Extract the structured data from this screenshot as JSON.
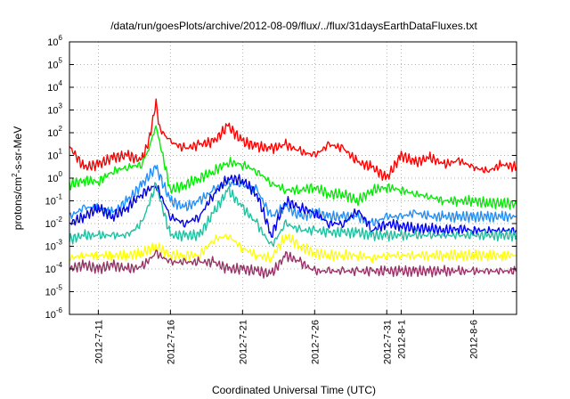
{
  "chart_data": {
    "type": "line",
    "title": "/data/run/goesPlots/archive/2012-08-09/flux/../flux/31daysEarthDataFluxes.txt",
    "xlabel": "Coordinated Universal Time (UTC)",
    "ylabel": {
      "prefix": "protons/cm",
      "sup": "2",
      "suffix": "-s-sr-MeV"
    },
    "yscale": "log",
    "ylim": [
      "1e-6",
      "1e6"
    ],
    "y_ticks": [
      {
        "base": "10",
        "exp": "-6",
        "value": 1e-06
      },
      {
        "base": "10",
        "exp": "-5",
        "value": 1e-05
      },
      {
        "base": "10",
        "exp": "-4",
        "value": 0.0001
      },
      {
        "base": "10",
        "exp": "-3",
        "value": 0.001
      },
      {
        "base": "10",
        "exp": "-2",
        "value": 0.01
      },
      {
        "base": "10",
        "exp": "-1",
        "value": 0.1
      },
      {
        "base": "10",
        "exp": "0",
        "value": 1
      },
      {
        "base": "10",
        "exp": "1",
        "value": 10
      },
      {
        "base": "10",
        "exp": "2",
        "value": 100
      },
      {
        "base": "10",
        "exp": "3",
        "value": 1000
      },
      {
        "base": "10",
        "exp": "4",
        "value": 10000
      },
      {
        "base": "10",
        "exp": "5",
        "value": 100000
      },
      {
        "base": "10",
        "exp": "6",
        "value": 1000000
      }
    ],
    "xlim": [
      "2012-07-09",
      "2012-08-09"
    ],
    "x_ticks": [
      {
        "label": "2012-7-11",
        "date": "2012-07-11"
      },
      {
        "label": "2012-7-16",
        "date": "2012-07-16"
      },
      {
        "label": "2012-7-21",
        "date": "2012-07-21"
      },
      {
        "label": "2012-7-26",
        "date": "2012-07-26"
      },
      {
        "label": "2012-7-31",
        "date": "2012-07-31"
      },
      {
        "label": "2012-8-1",
        "date": "2012-08-01"
      },
      {
        "label": "2012-8-6",
        "date": "2012-08-06"
      }
    ],
    "grid": true,
    "series": [
      {
        "color": "#ff0000",
        "points": [
          [
            "2012-07-09",
            25
          ],
          [
            "2012-07-10",
            3
          ],
          [
            "2012-07-11",
            4
          ],
          [
            "2012-07-12",
            8
          ],
          [
            "2012-07-13",
            10
          ],
          [
            "2012-07-14",
            6
          ],
          [
            "2012-07-14T12:00",
            40
          ],
          [
            "2012-07-15",
            2000
          ],
          [
            "2012-07-15T06:00",
            150
          ],
          [
            "2012-07-16",
            40
          ],
          [
            "2012-07-17",
            20
          ],
          [
            "2012-07-18",
            30
          ],
          [
            "2012-07-19",
            40
          ],
          [
            "2012-07-20",
            200
          ],
          [
            "2012-07-21",
            40
          ],
          [
            "2012-07-22",
            25
          ],
          [
            "2012-07-23",
            20
          ],
          [
            "2012-07-24",
            30
          ],
          [
            "2012-07-25",
            15
          ],
          [
            "2012-07-26",
            10
          ],
          [
            "2012-07-27",
            30
          ],
          [
            "2012-07-28",
            20
          ],
          [
            "2012-07-29",
            5
          ],
          [
            "2012-07-30",
            3
          ],
          [
            "2012-07-31",
            1
          ],
          [
            "2012-08-01",
            10
          ],
          [
            "2012-08-02",
            5
          ],
          [
            "2012-08-03",
            8
          ],
          [
            "2012-08-04",
            4
          ],
          [
            "2012-08-05",
            6
          ],
          [
            "2012-08-06",
            3
          ],
          [
            "2012-08-07",
            2
          ],
          [
            "2012-08-08",
            4
          ],
          [
            "2012-08-09",
            3
          ]
        ]
      },
      {
        "color": "#00ee00",
        "points": [
          [
            "2012-07-09",
            0.5
          ],
          [
            "2012-07-10",
            0.8
          ],
          [
            "2012-07-11",
            0.7
          ],
          [
            "2012-07-12",
            2
          ],
          [
            "2012-07-13",
            3
          ],
          [
            "2012-07-14",
            4
          ],
          [
            "2012-07-14T12:00",
            20
          ],
          [
            "2012-07-15",
            200
          ],
          [
            "2012-07-15T06:00",
            40
          ],
          [
            "2012-07-16",
            0.3
          ],
          [
            "2012-07-17",
            0.5
          ],
          [
            "2012-07-18",
            1
          ],
          [
            "2012-07-19",
            2
          ],
          [
            "2012-07-20",
            5
          ],
          [
            "2012-07-21",
            4
          ],
          [
            "2012-07-22",
            2
          ],
          [
            "2012-07-23",
            0.6
          ],
          [
            "2012-07-24",
            0.3
          ],
          [
            "2012-07-25",
            0.3
          ],
          [
            "2012-07-26",
            0.4
          ],
          [
            "2012-07-27",
            0.2
          ],
          [
            "2012-07-28",
            0.2
          ],
          [
            "2012-07-29",
            0.1
          ],
          [
            "2012-07-30",
            0.3
          ],
          [
            "2012-07-31",
            0.4
          ],
          [
            "2012-08-01",
            0.3
          ],
          [
            "2012-08-02",
            0.2
          ],
          [
            "2012-08-03",
            0.15
          ],
          [
            "2012-08-04",
            0.1
          ],
          [
            "2012-08-05",
            0.1
          ],
          [
            "2012-08-06",
            0.1
          ],
          [
            "2012-08-07",
            0.08
          ],
          [
            "2012-08-08",
            0.08
          ],
          [
            "2012-08-09",
            0.07
          ]
        ]
      },
      {
        "color": "#1e90ff",
        "points": [
          [
            "2012-07-09",
            0.02
          ],
          [
            "2012-07-10",
            0.05
          ],
          [
            "2012-07-11",
            0.05
          ],
          [
            "2012-07-12",
            0.03
          ],
          [
            "2012-07-13",
            0.1
          ],
          [
            "2012-07-14",
            0.5
          ],
          [
            "2012-07-15",
            3
          ],
          [
            "2012-07-16",
            0.1
          ],
          [
            "2012-07-17",
            0.05
          ],
          [
            "2012-07-18",
            0.1
          ],
          [
            "2012-07-19",
            0.3
          ],
          [
            "2012-07-20",
            0.6
          ],
          [
            "2012-07-21",
            0.5
          ],
          [
            "2012-07-22",
            0.3
          ],
          [
            "2012-07-23",
            0.02
          ],
          [
            "2012-07-24",
            0.06
          ],
          [
            "2012-07-25",
            0.02
          ],
          [
            "2012-07-26",
            0.03
          ],
          [
            "2012-07-27",
            0.02
          ],
          [
            "2012-07-28",
            0.02
          ],
          [
            "2012-07-29",
            0.02
          ],
          [
            "2012-07-30",
            0.01
          ],
          [
            "2012-07-31",
            0.02
          ],
          [
            "2012-08-01",
            0.02
          ],
          [
            "2012-08-02",
            0.03
          ],
          [
            "2012-08-03",
            0.02
          ],
          [
            "2012-08-04",
            0.02
          ],
          [
            "2012-08-05",
            0.02
          ],
          [
            "2012-08-06",
            0.02
          ],
          [
            "2012-08-07",
            0.02
          ],
          [
            "2012-08-08",
            0.02
          ],
          [
            "2012-08-09",
            0.02
          ]
        ]
      },
      {
        "color": "#0000ee",
        "points": [
          [
            "2012-07-09",
            0.01
          ],
          [
            "2012-07-10",
            0.02
          ],
          [
            "2012-07-11",
            0.05
          ],
          [
            "2012-07-12",
            0.02
          ],
          [
            "2012-07-13",
            0.05
          ],
          [
            "2012-07-14",
            0.2
          ],
          [
            "2012-07-15",
            0.5
          ],
          [
            "2012-07-16",
            0.02
          ],
          [
            "2012-07-17",
            0.01
          ],
          [
            "2012-07-18",
            0.02
          ],
          [
            "2012-07-19",
            0.2
          ],
          [
            "2012-07-20",
            1
          ],
          [
            "2012-07-21",
            0.8
          ],
          [
            "2012-07-22",
            0.2
          ],
          [
            "2012-07-23",
            0.003
          ],
          [
            "2012-07-24",
            0.1
          ],
          [
            "2012-07-25",
            0.05
          ],
          [
            "2012-07-26",
            0.03
          ],
          [
            "2012-07-27",
            0.01
          ],
          [
            "2012-07-28",
            0.01
          ],
          [
            "2012-07-29",
            0.04
          ],
          [
            "2012-07-30",
            0.005
          ],
          [
            "2012-07-31",
            0.01
          ],
          [
            "2012-08-01",
            0.008
          ],
          [
            "2012-08-02",
            0.006
          ],
          [
            "2012-08-03",
            0.006
          ],
          [
            "2012-08-04",
            0.005
          ],
          [
            "2012-08-05",
            0.006
          ],
          [
            "2012-08-06",
            0.005
          ],
          [
            "2012-08-07",
            0.005
          ],
          [
            "2012-08-08",
            0.005
          ],
          [
            "2012-08-09",
            0.005
          ]
        ]
      },
      {
        "color": "#20c0a0",
        "points": [
          [
            "2012-07-09",
            0.002
          ],
          [
            "2012-07-10",
            0.003
          ],
          [
            "2012-07-11",
            0.003
          ],
          [
            "2012-07-12",
            0.003
          ],
          [
            "2012-07-13",
            0.003
          ],
          [
            "2012-07-14",
            0.01
          ],
          [
            "2012-07-15",
            0.5
          ],
          [
            "2012-07-16",
            0.003
          ],
          [
            "2012-07-17",
            0.003
          ],
          [
            "2012-07-18",
            0.003
          ],
          [
            "2012-07-19",
            0.03
          ],
          [
            "2012-07-20",
            0.3
          ],
          [
            "2012-07-21",
            0.05
          ],
          [
            "2012-07-22",
            0.01
          ],
          [
            "2012-07-23",
            0.001
          ],
          [
            "2012-07-24",
            0.01
          ],
          [
            "2012-07-25",
            0.005
          ],
          [
            "2012-07-26",
            0.005
          ],
          [
            "2012-07-27",
            0.004
          ],
          [
            "2012-07-28",
            0.004
          ],
          [
            "2012-07-29",
            0.004
          ],
          [
            "2012-07-30",
            0.003
          ],
          [
            "2012-07-31",
            0.003
          ],
          [
            "2012-08-01",
            0.003
          ],
          [
            "2012-08-02",
            0.003
          ],
          [
            "2012-08-03",
            0.003
          ],
          [
            "2012-08-04",
            0.003
          ],
          [
            "2012-08-05",
            0.003
          ],
          [
            "2012-08-06",
            0.003
          ],
          [
            "2012-08-07",
            0.003
          ],
          [
            "2012-08-08",
            0.003
          ],
          [
            "2012-08-09",
            0.003
          ]
        ]
      },
      {
        "color": "#ffff00",
        "points": [
          [
            "2012-07-09",
            0.0003
          ],
          [
            "2012-07-10",
            0.0004
          ],
          [
            "2012-07-11",
            0.0004
          ],
          [
            "2012-07-12",
            0.0004
          ],
          [
            "2012-07-13",
            0.0004
          ],
          [
            "2012-07-14",
            0.0005
          ],
          [
            "2012-07-15",
            0.001
          ],
          [
            "2012-07-16",
            0.0004
          ],
          [
            "2012-07-17",
            0.0004
          ],
          [
            "2012-07-18",
            0.0004
          ],
          [
            "2012-07-19",
            0.002
          ],
          [
            "2012-07-20",
            0.003
          ],
          [
            "2012-07-21",
            0.0008
          ],
          [
            "2012-07-22",
            0.0004
          ],
          [
            "2012-07-23",
            0.0003
          ],
          [
            "2012-07-24",
            0.003
          ],
          [
            "2012-07-25",
            0.001
          ],
          [
            "2012-07-26",
            0.0005
          ],
          [
            "2012-07-27",
            0.0004
          ],
          [
            "2012-07-28",
            0.0004
          ],
          [
            "2012-07-29",
            0.0004
          ],
          [
            "2012-07-30",
            0.0003
          ],
          [
            "2012-07-31",
            0.0004
          ],
          [
            "2012-08-01",
            0.0004
          ],
          [
            "2012-08-02",
            0.0004
          ],
          [
            "2012-08-03",
            0.0004
          ],
          [
            "2012-08-04",
            0.0004
          ],
          [
            "2012-08-05",
            0.0004
          ],
          [
            "2012-08-06",
            0.0004
          ],
          [
            "2012-08-07",
            0.0004
          ],
          [
            "2012-08-08",
            0.0004
          ],
          [
            "2012-08-09",
            0.0004
          ]
        ]
      },
      {
        "color": "#993366",
        "points": [
          [
            "2012-07-09",
            0.0001
          ],
          [
            "2012-07-10",
            0.00015
          ],
          [
            "2012-07-11",
            0.0001
          ],
          [
            "2012-07-12",
            0.00015
          ],
          [
            "2012-07-13",
            0.0001
          ],
          [
            "2012-07-14",
            0.00012
          ],
          [
            "2012-07-15",
            0.0005
          ],
          [
            "2012-07-16",
            0.0002
          ],
          [
            "2012-07-17",
            0.0002
          ],
          [
            "2012-07-18",
            0.0002
          ],
          [
            "2012-07-19",
            0.0002
          ],
          [
            "2012-07-20",
            0.0001
          ],
          [
            "2012-07-21",
            0.0001
          ],
          [
            "2012-07-22",
            8e-05
          ],
          [
            "2012-07-23",
            6e-05
          ],
          [
            "2012-07-24",
            0.0004
          ],
          [
            "2012-07-25",
            0.0002
          ],
          [
            "2012-07-26",
            8e-05
          ],
          [
            "2012-07-27",
            8e-05
          ],
          [
            "2012-07-28",
            8e-05
          ],
          [
            "2012-07-29",
            8e-05
          ],
          [
            "2012-07-30",
            8e-05
          ],
          [
            "2012-07-31",
            8e-05
          ],
          [
            "2012-08-01",
            8e-05
          ],
          [
            "2012-08-02",
            8e-05
          ],
          [
            "2012-08-03",
            8e-05
          ],
          [
            "2012-08-04",
            8e-05
          ],
          [
            "2012-08-05",
            8e-05
          ],
          [
            "2012-08-06",
            8e-05
          ],
          [
            "2012-08-07",
            8e-05
          ],
          [
            "2012-08-08",
            8e-05
          ],
          [
            "2012-08-09",
            8e-05
          ]
        ]
      }
    ]
  }
}
